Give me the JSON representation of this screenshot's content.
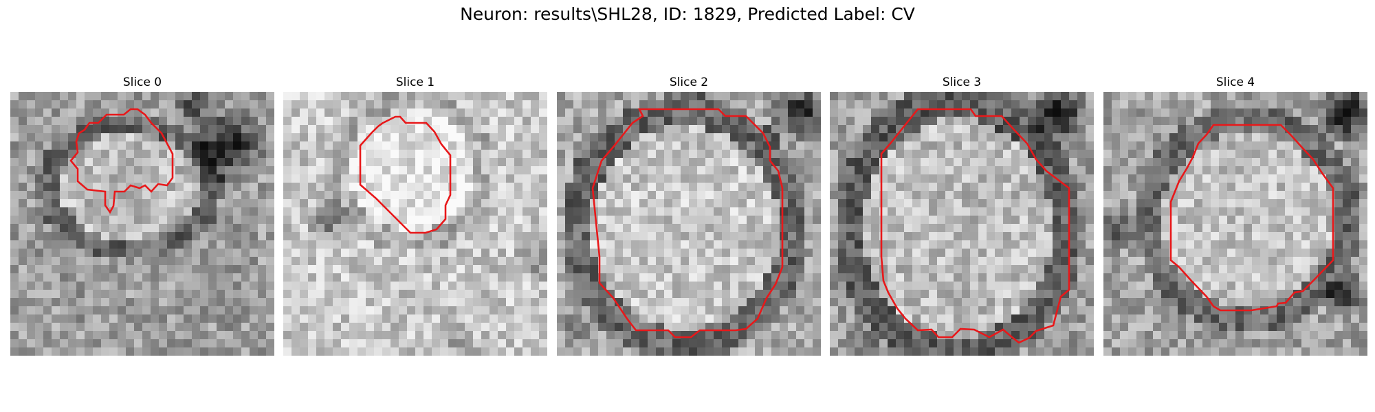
{
  "figure": {
    "title": "Neuron: results\\SHL28, ID: 1829, Predicted Label: CV"
  },
  "colors": {
    "contour": "#e8181a",
    "background": "#ffffff"
  },
  "panels": [
    {
      "title": "Slice 0"
    },
    {
      "title": "Slice 1"
    },
    {
      "title": "Slice 2"
    },
    {
      "title": "Slice 3"
    },
    {
      "title": "Slice 4"
    }
  ]
}
